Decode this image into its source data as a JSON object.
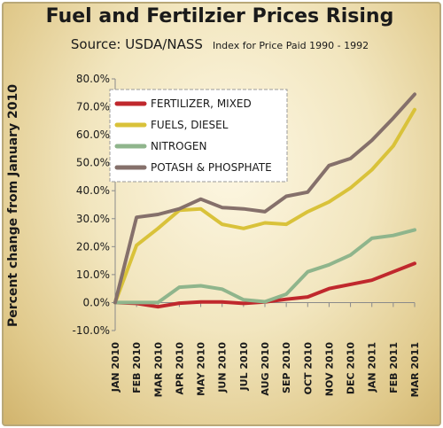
{
  "chart_data": {
    "type": "line",
    "title": "Fuel and Fertilzier Prices Rising",
    "subtitle": "Source: USDA/NASS",
    "note": "Index for Price Paid 1990 - 1992",
    "xlabel": "",
    "ylabel": "Percent change from January 2010",
    "ylim": [
      -10,
      80
    ],
    "yticks": [
      "-10.0%",
      "0.0%",
      "10.0%",
      "20.0%",
      "30.0%",
      "40.0%",
      "50.0%",
      "60.0%",
      "70.0%",
      "80.0%"
    ],
    "categories": [
      "JAN 2010",
      "FEB 2010",
      "MAR 2010",
      "APR 2010",
      "MAY 2010",
      "JUN 2010",
      "JUL 2010",
      "AUG 2010",
      "SEP 2010",
      "OCT 2010",
      "NOV 2010",
      "DEC 2010",
      "JAN 2011",
      "FEB 2011",
      "MAR 2011"
    ],
    "legend_position": "top-left",
    "series": [
      {
        "name": "FERTILIZER, MIXED",
        "color": "#c0282d",
        "values": [
          0,
          -0.3,
          -1.5,
          -0.2,
          0.2,
          0.2,
          -0.3,
          0.2,
          1.2,
          2.0,
          5.0,
          6.5,
          8.0,
          11.0,
          14.0
        ]
      },
      {
        "name": "FUELS, DIESEL",
        "color": "#d9c23a",
        "values": [
          0,
          20.5,
          26.5,
          33.0,
          33.5,
          28.0,
          26.5,
          28.5,
          28.0,
          32.5,
          36.0,
          41.0,
          47.5,
          56.0,
          69.0
        ]
      },
      {
        "name": "NITROGEN",
        "color": "#8fb58c",
        "values": [
          0,
          0,
          0,
          5.5,
          6.0,
          4.8,
          1.0,
          0.3,
          3.0,
          11.0,
          13.5,
          17.0,
          23.0,
          24.0,
          26.0
        ]
      },
      {
        "name": "POTASH & PHOSPHATE",
        "color": "#85706b",
        "values": [
          0,
          30.5,
          31.5,
          33.5,
          37.0,
          34.0,
          33.5,
          32.5,
          38.0,
          39.5,
          49.0,
          51.5,
          58.0,
          66.0,
          74.5
        ]
      }
    ]
  }
}
